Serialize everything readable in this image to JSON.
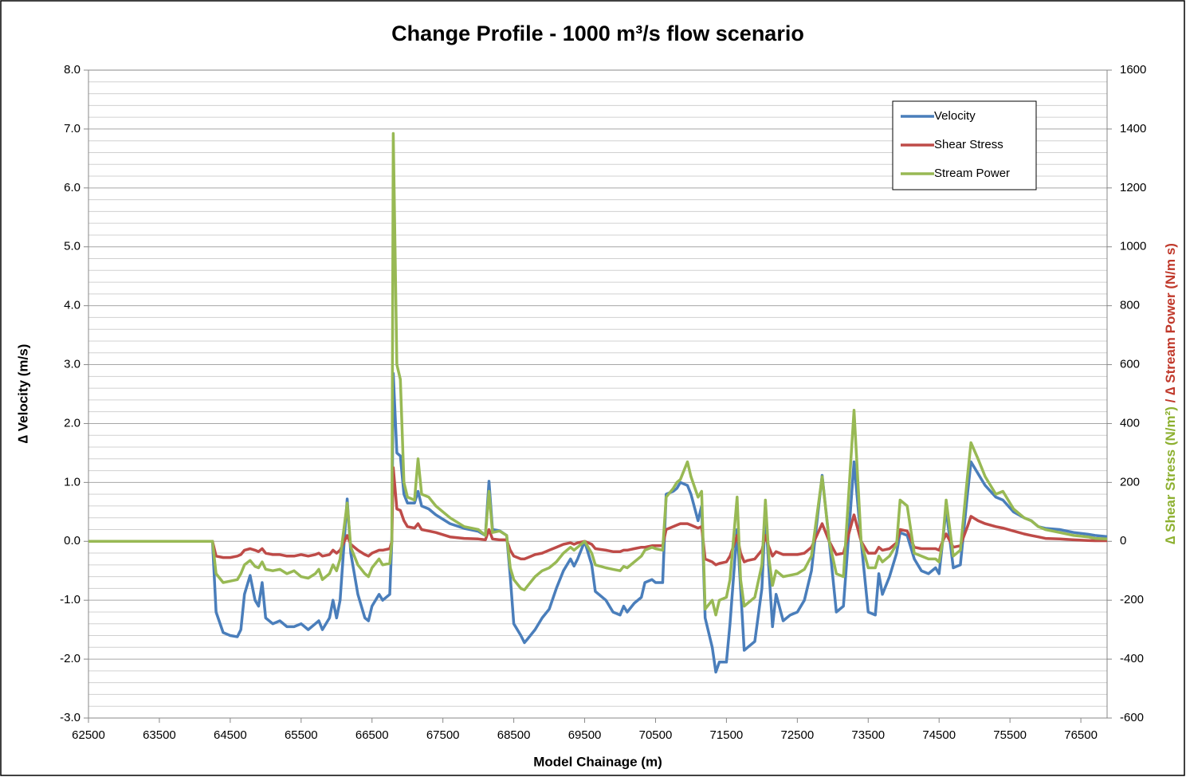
{
  "chart_data": {
    "type": "line",
    "title": "Change Profile - 1000 m³/s flow scenario",
    "xlabel": "Model Chainage (m)",
    "ylabel": "∆ Velocity  (m/s)",
    "ylabel_color": "#2e7cc0",
    "y2label": [
      "∆ Shear Stress (N/m²)",
      " / ",
      "∆ Stream Power (N/m s)"
    ],
    "y2label_colors": [
      "#8db030",
      "#c0392b",
      "#c0392b"
    ],
    "xlim": [
      62500,
      76870
    ],
    "xticks": [
      62500,
      63500,
      64500,
      65500,
      66500,
      67500,
      68500,
      69500,
      70500,
      71500,
      72500,
      73500,
      74500,
      75500,
      76500
    ],
    "ylim": [
      -3,
      8
    ],
    "yticks": [
      {
        "value": -3,
        "label": "-3.0"
      },
      {
        "value": -2,
        "label": "-2.0"
      },
      {
        "value": -1,
        "label": "-1.0"
      },
      {
        "value": 0,
        "label": "0.0"
      },
      {
        "value": 1,
        "label": "1.0"
      },
      {
        "value": 2,
        "label": "2.0"
      },
      {
        "value": 3,
        "label": "3.0"
      },
      {
        "value": 4,
        "label": "4.0"
      },
      {
        "value": 5,
        "label": "5.0"
      },
      {
        "value": 6,
        "label": "6.0"
      },
      {
        "value": 7,
        "label": "7.0"
      },
      {
        "value": 8,
        "label": "8.0"
      }
    ],
    "yminorticks": [
      -2.8,
      -2.6,
      -2.4,
      -2.2,
      -1.8,
      -1.6,
      -1.4,
      -1.2,
      -0.8,
      -0.6,
      -0.4,
      -0.2,
      0.2,
      0.4,
      0.6,
      0.8,
      1.2,
      1.4,
      1.6,
      1.8,
      2.2,
      2.4,
      2.6,
      2.8,
      3.2,
      3.4,
      3.6,
      3.8,
      4.2,
      4.4,
      4.6,
      4.8,
      5.2,
      5.4,
      5.6,
      5.8,
      6.2,
      6.4,
      6.6,
      6.8,
      7.2,
      7.4,
      7.6,
      7.8
    ],
    "y2lim": [
      -600,
      1600
    ],
    "y2ticks": [
      -600,
      -400,
      -200,
      0,
      200,
      400,
      600,
      800,
      1000,
      1200,
      1400,
      1600
    ],
    "grid": true,
    "legend": "upper right",
    "x": [
      62500,
      64200,
      64250,
      64300,
      64400,
      64500,
      64600,
      64650,
      64700,
      64780,
      64850,
      64900,
      64950,
      65000,
      65100,
      65200,
      65300,
      65400,
      65500,
      65600,
      65700,
      65750,
      65800,
      65900,
      65950,
      66000,
      66050,
      66150,
      66200,
      66300,
      66400,
      66450,
      66500,
      66600,
      66650,
      66750,
      66780,
      66800,
      66850,
      66900,
      66950,
      67000,
      67100,
      67150,
      67200,
      67300,
      67400,
      67600,
      67800,
      68000,
      68100,
      68150,
      68200,
      68300,
      68400,
      68450,
      68500,
      68600,
      68650,
      68700,
      68800,
      68900,
      69000,
      69100,
      69200,
      69300,
      69350,
      69400,
      69500,
      69600,
      69650,
      69800,
      69900,
      70000,
      70050,
      70100,
      70200,
      70300,
      70350,
      70450,
      70500,
      70600,
      70650,
      70750,
      70800,
      70850,
      70950,
      71000,
      71100,
      71150,
      71200,
      71300,
      71350,
      71400,
      71500,
      71550,
      71650,
      71700,
      71750,
      71800,
      71900,
      72000,
      72050,
      72100,
      72150,
      72200,
      72300,
      72400,
      72500,
      72600,
      72700,
      72850,
      72950,
      73050,
      73150,
      73300,
      73400,
      73500,
      73600,
      73650,
      73700,
      73800,
      73900,
      73950,
      74050,
      74150,
      74250,
      74350,
      74450,
      74500,
      74550,
      74600,
      74700,
      74800,
      74900,
      74950,
      75050,
      75150,
      75300,
      75400,
      75550,
      75700,
      75800,
      75900,
      76000,
      76200,
      76400,
      76600,
      76700,
      76870
    ],
    "series": [
      {
        "name": "Velocity",
        "color": "#4a7ebb",
        "axis": "y",
        "values": [
          0,
          0,
          0,
          -1.2,
          -1.55,
          -1.6,
          -1.62,
          -1.5,
          -0.9,
          -0.58,
          -1.0,
          -1.1,
          -0.7,
          -1.3,
          -1.4,
          -1.35,
          -1.45,
          -1.45,
          -1.4,
          -1.5,
          -1.4,
          -1.35,
          -1.5,
          -1.3,
          -1.0,
          -1.3,
          -1.0,
          0.72,
          -0.2,
          -0.9,
          -1.3,
          -1.35,
          -1.1,
          -0.9,
          -1.0,
          -0.9,
          0,
          2.85,
          1.5,
          1.45,
          0.8,
          0.65,
          0.65,
          0.85,
          0.6,
          0.55,
          0.45,
          0.3,
          0.22,
          0.17,
          0.1,
          1.02,
          0.2,
          0.18,
          0.1,
          -0.6,
          -1.4,
          -1.6,
          -1.72,
          -1.65,
          -1.5,
          -1.3,
          -1.15,
          -0.8,
          -0.5,
          -0.3,
          -0.42,
          -0.3,
          0,
          -0.4,
          -0.85,
          -1.0,
          -1.2,
          -1.25,
          -1.1,
          -1.2,
          -1.05,
          -0.95,
          -0.7,
          -0.65,
          -0.7,
          -0.7,
          0.8,
          0.85,
          0.9,
          1.0,
          0.95,
          0.8,
          0.35,
          0.6,
          -1.3,
          -1.8,
          -2.22,
          -2.05,
          -2.05,
          -1.4,
          0.2,
          -0.8,
          -1.85,
          -1.8,
          -1.7,
          -0.8,
          0.5,
          -0.5,
          -1.45,
          -0.9,
          -1.35,
          -1.25,
          -1.2,
          -1.0,
          -0.5,
          1.12,
          0,
          -1.2,
          -1.1,
          1.35,
          0,
          -1.2,
          -1.25,
          -0.55,
          -0.9,
          -0.6,
          -0.2,
          0.15,
          0.1,
          -0.3,
          -0.5,
          -0.55,
          -0.45,
          -0.55,
          0,
          0.55,
          -0.45,
          -0.4,
          0.8,
          1.35,
          1.15,
          0.95,
          0.75,
          0.7,
          0.5,
          0.4,
          0.35,
          0.25,
          0.22,
          0.2,
          0.15,
          0.12,
          0.1,
          0.08
        ]
      },
      {
        "name": "Shear Stress",
        "color": "#be4b48",
        "axis": "y2",
        "values": [
          0,
          0,
          0,
          -50,
          -55,
          -55,
          -50,
          -45,
          -30,
          -25,
          -30,
          -35,
          -25,
          -40,
          -45,
          -45,
          -50,
          -50,
          -45,
          -50,
          -45,
          -40,
          -50,
          -45,
          -30,
          -40,
          -30,
          20,
          -10,
          -30,
          -45,
          -50,
          -40,
          -30,
          -30,
          -25,
          0,
          250,
          110,
          105,
          70,
          50,
          45,
          60,
          40,
          35,
          30,
          15,
          10,
          8,
          5,
          40,
          8,
          5,
          5,
          -30,
          -50,
          -60,
          -60,
          -55,
          -45,
          -40,
          -30,
          -20,
          -10,
          -5,
          -10,
          -5,
          0,
          -10,
          -25,
          -30,
          -35,
          -35,
          -30,
          -30,
          -25,
          -20,
          -20,
          -15,
          -15,
          -15,
          40,
          50,
          55,
          60,
          60,
          55,
          45,
          50,
          -60,
          -70,
          -80,
          -75,
          -70,
          -50,
          20,
          -40,
          -70,
          -65,
          -60,
          -30,
          20,
          -20,
          -50,
          -35,
          -45,
          -45,
          -45,
          -40,
          -20,
          60,
          0,
          -45,
          -40,
          90,
          0,
          -40,
          -40,
          -20,
          -30,
          -25,
          -5,
          40,
          35,
          -20,
          -25,
          -25,
          -25,
          -30,
          0,
          25,
          -20,
          -15,
          50,
          85,
          70,
          60,
          50,
          45,
          35,
          25,
          20,
          15,
          10,
          8,
          5,
          3,
          2,
          2
        ]
      },
      {
        "name": "Stream Power",
        "color": "#98b954",
        "axis": "y2",
        "values": [
          0,
          0,
          0,
          -110,
          -140,
          -135,
          -130,
          -110,
          -80,
          -65,
          -85,
          -90,
          -70,
          -95,
          -100,
          -95,
          -110,
          -100,
          -120,
          -125,
          -110,
          -95,
          -130,
          -110,
          -80,
          -100,
          -60,
          130,
          -20,
          -80,
          -110,
          -120,
          -90,
          -60,
          -80,
          -75,
          0,
          1385,
          600,
          550,
          200,
          150,
          140,
          280,
          160,
          150,
          120,
          80,
          50,
          40,
          20,
          170,
          30,
          35,
          20,
          -90,
          -130,
          -160,
          -165,
          -150,
          -120,
          -100,
          -90,
          -70,
          -40,
          -20,
          -30,
          -20,
          0,
          -40,
          -80,
          -90,
          -95,
          -100,
          -85,
          -90,
          -70,
          -50,
          -30,
          -20,
          -25,
          -30,
          150,
          180,
          200,
          210,
          270,
          220,
          150,
          170,
          -230,
          -200,
          -250,
          -200,
          -190,
          -130,
          150,
          -130,
          -220,
          -210,
          -190,
          -80,
          140,
          -60,
          -150,
          -100,
          -120,
          -115,
          -110,
          -95,
          -50,
          220,
          0,
          -110,
          -120,
          445,
          0,
          -90,
          -90,
          -50,
          -70,
          -50,
          -10,
          140,
          120,
          -40,
          -50,
          -60,
          -60,
          -70,
          0,
          140,
          -50,
          -30,
          220,
          335,
          280,
          220,
          160,
          170,
          110,
          80,
          70,
          50,
          40,
          30,
          20,
          15,
          10,
          8
        ]
      }
    ]
  }
}
